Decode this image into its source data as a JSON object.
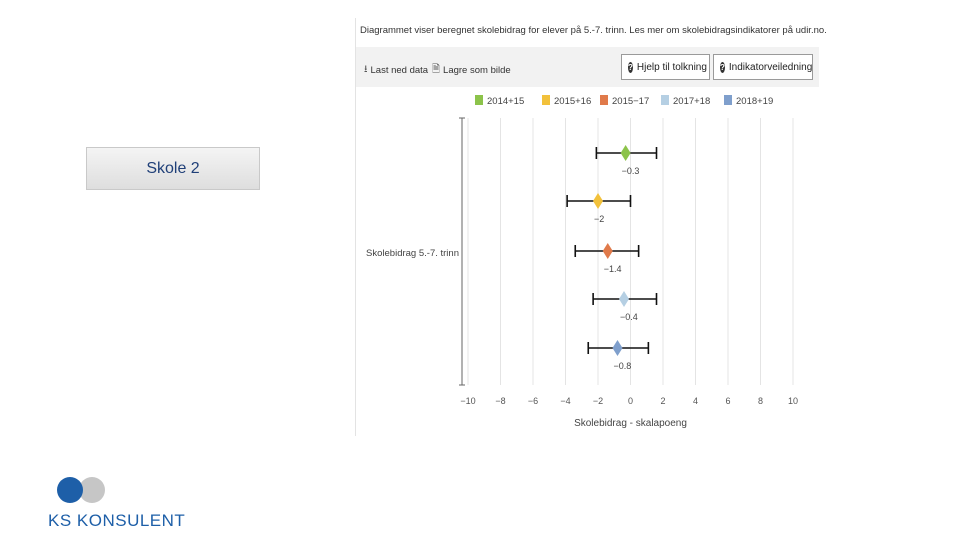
{
  "left": {
    "school_label": "Skole 2"
  },
  "panel": {
    "caption": "Diagrammet viser beregnet skolebidrag for elever på 5.-7. trinn. Les mer om skolebidragsindikatorer på udir.no.",
    "toolbar": {
      "download_label": "Last ned data",
      "save_image_label": "Lagre som bilde",
      "help_label": "Hjelp til tolkning",
      "guide_label": "Indikatorveiledning"
    }
  },
  "chart_data": {
    "type": "scatter",
    "subtype": "point-with-error-bars",
    "title": "",
    "ylabel": "Skolebidrag 5.-7. trinn",
    "xlabel": "Skolebidrag - skalapoeng",
    "xlim": [
      -10,
      10
    ],
    "xticks": [
      -10,
      -8,
      -6,
      -4,
      -2,
      0,
      2,
      4,
      6,
      8,
      10
    ],
    "xtick_labels": [
      "−10",
      "−8",
      "−6",
      "−4",
      "−2",
      "0",
      "2",
      "4",
      "6",
      "8",
      "10"
    ],
    "legend_position": "top",
    "series": [
      {
        "name": "2014+15",
        "value": -0.3,
        "low": -2.1,
        "high": 1.6,
        "label": "−0.3",
        "color": "#8cc34a"
      },
      {
        "name": "2015+16",
        "value": -2.0,
        "low": -3.9,
        "high": 0.0,
        "label": "−2",
        "color": "#f2c13b"
      },
      {
        "name": "2015−17",
        "value": -1.4,
        "low": -3.4,
        "high": 0.5,
        "label": "−1.4",
        "color": "#e07a4a"
      },
      {
        "name": "2017+18",
        "value": -0.4,
        "low": -2.3,
        "high": 1.6,
        "label": "−0.4",
        "color": "#b5cfe3"
      },
      {
        "name": "2018+19",
        "value": -0.8,
        "low": -2.6,
        "high": 1.1,
        "label": "−0.8",
        "color": "#7f9fcc"
      }
    ]
  },
  "logo": {
    "text": "KS KONSULENT",
    "colors": {
      "blue": "#1e5fa8",
      "grey": "#c6c6c6"
    }
  }
}
